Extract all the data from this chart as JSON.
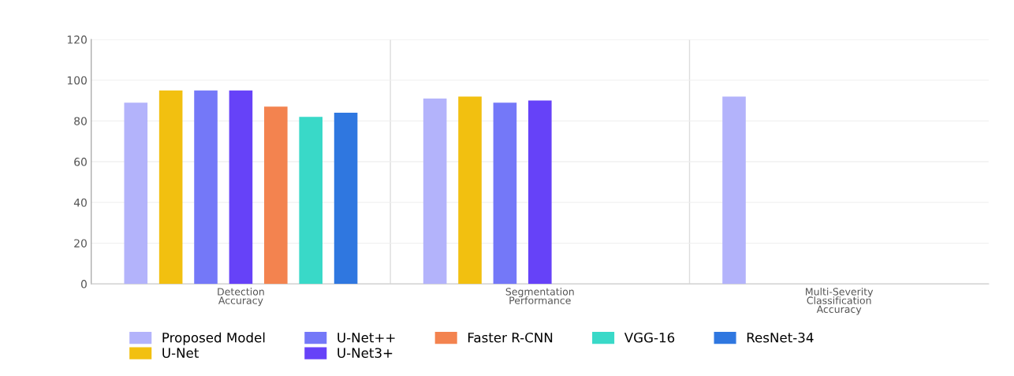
{
  "chart_data": {
    "type": "bar",
    "categories": [
      "Detection Accuracy",
      "Segmentation Performance",
      "Multi-Severity Classification Accuracy"
    ],
    "series": [
      {
        "name": "Proposed Model",
        "color": "#b3b3fb",
        "values": [
          89,
          91,
          92
        ]
      },
      {
        "name": "U-Net",
        "color": "#f2c010",
        "values": [
          95,
          92,
          null
        ]
      },
      {
        "name": "U-Net++",
        "color": "#7478f8",
        "values": [
          95,
          89,
          null
        ]
      },
      {
        "name": "U-Net3+",
        "color": "#6642f8",
        "values": [
          95,
          90,
          null
        ]
      },
      {
        "name": "Faster R-CNN",
        "color": "#f3834f",
        "values": [
          87,
          null,
          null
        ]
      },
      {
        "name": "VGG-16",
        "color": "#39d9c8",
        "values": [
          82,
          null,
          null
        ]
      },
      {
        "name": "ResNet-34",
        "color": "#2f77e0",
        "values": [
          84,
          null,
          null
        ]
      }
    ],
    "ylim": [
      0,
      120
    ],
    "yticks": [
      0,
      20,
      40,
      60,
      80,
      100,
      120
    ],
    "grid": true,
    "legend": "bottom"
  }
}
